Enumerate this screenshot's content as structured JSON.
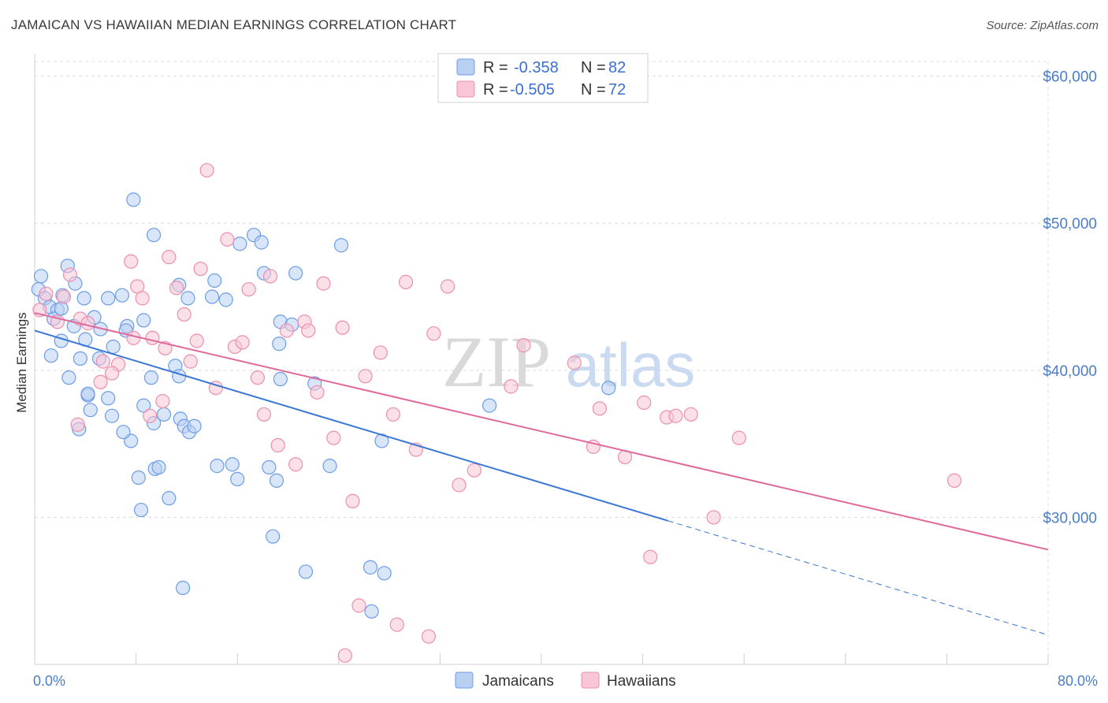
{
  "title": "JAMAICAN VS HAWAIIAN MEDIAN EARNINGS CORRELATION CHART",
  "source": "Source: ZipAtlas.com",
  "watermark": {
    "zip": "ZIP",
    "atlas": "atlas"
  },
  "chart_data": {
    "type": "scatter",
    "ylabel": "Median Earnings",
    "xlim": [
      0,
      80
    ],
    "ylim": [
      20000,
      61000
    ],
    "x_tick_labels": [
      "0.0%",
      "80.0%"
    ],
    "y_ticks": [
      30000,
      40000,
      50000,
      60000
    ],
    "y_tick_labels": [
      "$30,000",
      "$40,000",
      "$50,000",
      "$60,000"
    ],
    "grid": true,
    "legend_position": "top-center",
    "series": [
      {
        "name": "Jamaicans",
        "color": "#6b9de8",
        "fill": "#b9d0f3",
        "r_label": "R =",
        "r_value": "-0.358",
        "n_label": "N =",
        "n_value": "82",
        "trend": {
          "x0": 0,
          "y0": 42700,
          "x_solid_end": 50,
          "x1": 80,
          "y1": 22000
        },
        "points": [
          [
            0.5,
            46400
          ],
          [
            0.3,
            45500
          ],
          [
            0.8,
            44900
          ],
          [
            1.2,
            44300
          ],
          [
            1.8,
            44100
          ],
          [
            2.2,
            45100
          ],
          [
            2.6,
            47100
          ],
          [
            1.5,
            43500
          ],
          [
            2.1,
            44200
          ],
          [
            3.2,
            45900
          ],
          [
            3.9,
            44900
          ],
          [
            4.7,
            43600
          ],
          [
            5.2,
            42800
          ],
          [
            3.1,
            43000
          ],
          [
            4.0,
            42100
          ],
          [
            5.8,
            44900
          ],
          [
            6.9,
            45100
          ],
          [
            7.3,
            43000
          ],
          [
            8.6,
            43400
          ],
          [
            9.2,
            39500
          ],
          [
            1.3,
            41000
          ],
          [
            2.1,
            42000
          ],
          [
            3.6,
            40800
          ],
          [
            2.7,
            39500
          ],
          [
            4.2,
            38300
          ],
          [
            5.1,
            40800
          ],
          [
            6.2,
            41600
          ],
          [
            7.2,
            42700
          ],
          [
            5.8,
            38100
          ],
          [
            3.5,
            36000
          ],
          [
            4.4,
            37300
          ],
          [
            6.1,
            36900
          ],
          [
            7.6,
            35200
          ],
          [
            8.6,
            37600
          ],
          [
            9.4,
            36400
          ],
          [
            10.2,
            37000
          ],
          [
            11.5,
            36700
          ],
          [
            11.8,
            36200
          ],
          [
            12.2,
            35800
          ],
          [
            12.6,
            36200
          ],
          [
            7.0,
            35800
          ],
          [
            8.2,
            32700
          ],
          [
            9.5,
            33300
          ],
          [
            10.6,
            31300
          ],
          [
            8.4,
            30500
          ],
          [
            9.8,
            33400
          ],
          [
            14.4,
            33500
          ],
          [
            15.6,
            33600
          ],
          [
            16.0,
            32600
          ],
          [
            18.5,
            33400
          ],
          [
            19.1,
            32500
          ],
          [
            23.3,
            33500
          ],
          [
            7.8,
            51600
          ],
          [
            9.4,
            49200
          ],
          [
            11.4,
            45800
          ],
          [
            12.1,
            44900
          ],
          [
            14.2,
            46100
          ],
          [
            15.1,
            44800
          ],
          [
            16.2,
            48600
          ],
          [
            17.3,
            49200
          ],
          [
            17.9,
            48700
          ],
          [
            18.1,
            46600
          ],
          [
            19.4,
            43300
          ],
          [
            20.6,
            46600
          ],
          [
            24.2,
            48500
          ],
          [
            14.0,
            45000
          ],
          [
            11.1,
            40300
          ],
          [
            11.4,
            39600
          ],
          [
            19.3,
            41800
          ],
          [
            19.4,
            39400
          ],
          [
            22.1,
            39100
          ],
          [
            20.3,
            43100
          ],
          [
            27.4,
            35200
          ],
          [
            35.9,
            37600
          ],
          [
            45.3,
            38800
          ],
          [
            18.8,
            28700
          ],
          [
            21.4,
            26300
          ],
          [
            26.5,
            26600
          ],
          [
            27.6,
            26200
          ],
          [
            11.7,
            25200
          ],
          [
            26.6,
            23600
          ],
          [
            4.2,
            38400
          ]
        ]
      },
      {
        "name": "Hawaiians",
        "color": "#ec8fae",
        "fill": "#f8c6d6",
        "r_label": "R =",
        "r_value": "-0.505",
        "n_label": "N =",
        "n_value": "72",
        "trend": {
          "x0": 0,
          "y0": 43900,
          "x1": 80,
          "y1": 27800
        },
        "points": [
          [
            0.4,
            44100
          ],
          [
            0.9,
            45200
          ],
          [
            1.8,
            43300
          ],
          [
            2.3,
            45000
          ],
          [
            2.8,
            46500
          ],
          [
            3.6,
            43500
          ],
          [
            4.2,
            43200
          ],
          [
            5.4,
            40600
          ],
          [
            6.6,
            40400
          ],
          [
            7.6,
            47400
          ],
          [
            8.1,
            45700
          ],
          [
            8.5,
            44900
          ],
          [
            9.3,
            42200
          ],
          [
            10.3,
            41500
          ],
          [
            10.6,
            47700
          ],
          [
            11.2,
            45600
          ],
          [
            11.8,
            43800
          ],
          [
            12.3,
            40600
          ],
          [
            13.1,
            46900
          ],
          [
            13.6,
            53600
          ],
          [
            14.3,
            38800
          ],
          [
            15.2,
            48900
          ],
          [
            15.8,
            41600
          ],
          [
            16.4,
            41900
          ],
          [
            16.9,
            45500
          ],
          [
            17.6,
            39500
          ],
          [
            18.1,
            37000
          ],
          [
            18.6,
            46400
          ],
          [
            19.2,
            34900
          ],
          [
            19.9,
            42700
          ],
          [
            20.6,
            33600
          ],
          [
            21.3,
            43300
          ],
          [
            21.6,
            42700
          ],
          [
            22.3,
            38500
          ],
          [
            22.8,
            45900
          ],
          [
            23.6,
            35400
          ],
          [
            24.3,
            42900
          ],
          [
            25.1,
            31100
          ],
          [
            26.1,
            39600
          ],
          [
            27.3,
            41200
          ],
          [
            28.3,
            37000
          ],
          [
            29.3,
            46000
          ],
          [
            30.1,
            34600
          ],
          [
            31.5,
            42500
          ],
          [
            32.6,
            45700
          ],
          [
            33.5,
            32200
          ],
          [
            34.7,
            33200
          ],
          [
            37.6,
            38900
          ],
          [
            38.6,
            41700
          ],
          [
            42.6,
            40500
          ],
          [
            44.1,
            34800
          ],
          [
            44.6,
            37400
          ],
          [
            46.6,
            34100
          ],
          [
            48.1,
            37800
          ],
          [
            48.6,
            27300
          ],
          [
            49.9,
            36800
          ],
          [
            50.6,
            36900
          ],
          [
            51.8,
            37000
          ],
          [
            53.6,
            30000
          ],
          [
            55.6,
            35400
          ],
          [
            72.6,
            32500
          ],
          [
            5.2,
            39200
          ],
          [
            6.1,
            39800
          ],
          [
            7.8,
            42200
          ],
          [
            10.1,
            37900
          ],
          [
            12.8,
            42000
          ],
          [
            25.6,
            24000
          ],
          [
            28.6,
            22700
          ],
          [
            31.1,
            21900
          ],
          [
            24.5,
            20600
          ],
          [
            3.4,
            36300
          ],
          [
            9.1,
            36900
          ]
        ]
      }
    ]
  }
}
